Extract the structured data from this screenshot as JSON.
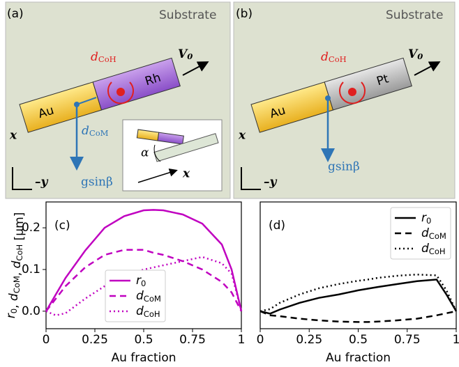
{
  "panels": [
    {
      "label": "(a)",
      "substrate": "Substrate",
      "segments": [
        "Au",
        "Rh"
      ],
      "velocity": "V0",
      "center": "dCoH",
      "com": "dCoM",
      "gravity": "gsinβ",
      "x_axis": "x",
      "y_axis": "–y",
      "inset_x": "x",
      "inset_angle": "α"
    },
    {
      "label": "(b)",
      "substrate": "Substrate",
      "segments": [
        "Au",
        "Pt"
      ],
      "velocity": "V0",
      "center": "dCoH",
      "gravity": "gsinβ",
      "x_axis": "x",
      "y_axis": "–y"
    }
  ],
  "chart_data": [
    {
      "type": "line",
      "panel_label": "(c)",
      "xlabel": "Au fraction",
      "ylabel": "r0, dCoM, dCoH [μm]",
      "x": [
        0,
        0.05,
        0.1,
        0.2,
        0.3,
        0.4,
        0.5,
        0.55,
        0.6,
        0.7,
        0.8,
        0.9,
        0.95,
        1
      ],
      "series": [
        {
          "name": "r0",
          "color": "#c000c0",
          "style": "solid",
          "values": [
            0,
            0.04,
            0.08,
            0.145,
            0.2,
            0.228,
            0.242,
            0.243,
            0.242,
            0.232,
            0.21,
            0.16,
            0.1,
            0
          ]
        },
        {
          "name": "dCoM",
          "color": "#c000c0",
          "style": "dashed",
          "values": [
            0,
            0.03,
            0.06,
            0.105,
            0.135,
            0.147,
            0.147,
            0.14,
            0.135,
            0.12,
            0.1,
            0.07,
            0.045,
            0
          ]
        },
        {
          "name": "dCoH",
          "color": "#c000c0",
          "style": "dotted",
          "values": [
            0,
            -0.01,
            -0.005,
            0.03,
            0.06,
            0.085,
            0.1,
            0.105,
            0.11,
            0.12,
            0.13,
            0.115,
            0.09,
            0
          ]
        }
      ],
      "xlim": [
        0,
        1
      ],
      "ylim": [
        -0.042,
        0.262
      ],
      "xticks": [
        0,
        0.25,
        0.5,
        0.75,
        1
      ],
      "yticks": [
        {
          "value": 0,
          "label": "0.0"
        },
        0.1,
        0.2
      ],
      "legend": "lower center"
    },
    {
      "type": "line",
      "panel_label": "(d)",
      "xlabel": "Au fraction",
      "x": [
        0,
        0.05,
        0.1,
        0.2,
        0.3,
        0.4,
        0.5,
        0.55,
        0.6,
        0.7,
        0.8,
        0.9,
        0.95,
        1
      ],
      "series": [
        {
          "name": "r0",
          "color": "#000000",
          "style": "solid",
          "values": [
            0,
            -0.006,
            0.004,
            0.02,
            0.032,
            0.04,
            0.05,
            0.054,
            0.058,
            0.065,
            0.072,
            0.076,
            0.04,
            0
          ]
        },
        {
          "name": "dCoM",
          "color": "#000000",
          "style": "dashed",
          "values": [
            0,
            -0.01,
            -0.012,
            -0.018,
            -0.022,
            -0.025,
            -0.026,
            -0.026,
            -0.025,
            -0.022,
            -0.018,
            -0.01,
            -0.005,
            0
          ]
        },
        {
          "name": "dCoH",
          "color": "#000000",
          "style": "dotted",
          "values": [
            0,
            0.005,
            0.02,
            0.04,
            0.055,
            0.065,
            0.073,
            0.076,
            0.08,
            0.085,
            0.088,
            0.086,
            0.05,
            0
          ]
        }
      ],
      "xlim": [
        0,
        1
      ],
      "ylim": [
        -0.042,
        0.262
      ],
      "xticks": [
        0,
        0.25,
        0.5,
        0.75,
        1
      ],
      "legend": "upper right"
    }
  ]
}
